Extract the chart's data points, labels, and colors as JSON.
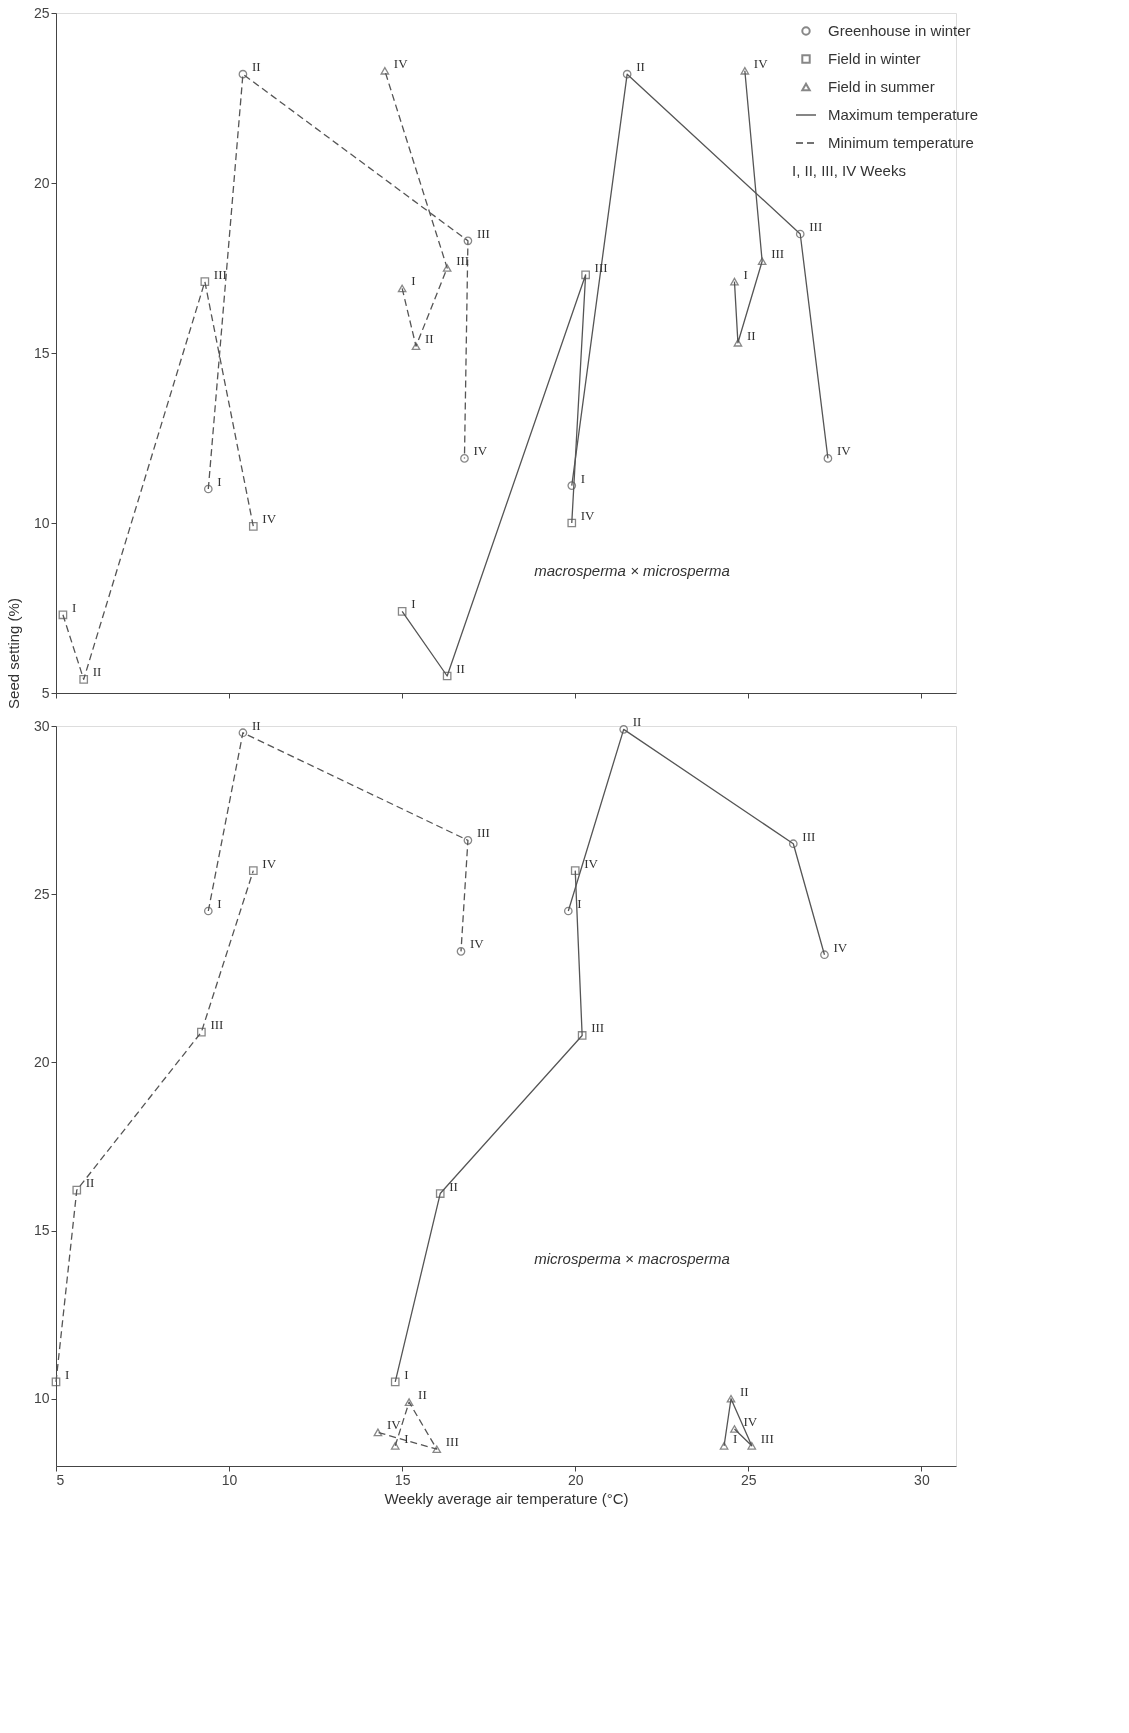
{
  "chart_data": [
    {
      "type": "line",
      "ylabel": "Seed setting (%)",
      "xlim": [
        5,
        31
      ],
      "xticks": [
        5,
        10,
        15,
        20,
        25,
        30
      ],
      "ylim": [
        5,
        25
      ],
      "yticks": [
        5,
        10,
        15,
        20,
        25
      ],
      "tick_labels": "y",
      "grid": false,
      "legend": "top right",
      "annotations": [
        "macrosperma × microsperma",
        "Maximum temperature",
        "Minimum temperature",
        "I, II, III, IV  Weeks"
      ],
      "series": [
        {
          "name": "Greenhouse in winter",
          "color": "#555555",
          "marker": "circle",
          "line_style": "solid",
          "x": [
            19.9,
            21.5,
            26.5,
            27.3
          ],
          "values": [
            11.1,
            23.2,
            18.5,
            11.9
          ],
          "value_labels": [
            "I",
            "II",
            "III",
            "IV"
          ]
        },
        {
          "color": "#555555",
          "marker": "circle",
          "line_style": "dashed",
          "x": [
            9.4,
            10.4,
            16.9,
            16.8
          ],
          "values": [
            11.0,
            23.2,
            18.3,
            11.9
          ],
          "value_labels": [
            "I",
            "II",
            "III",
            "IV"
          ]
        },
        {
          "name": "Field in winter",
          "color": "#555555",
          "marker": "square",
          "line_style": "solid",
          "x": [
            15.0,
            16.3,
            20.3,
            19.9
          ],
          "values": [
            7.4,
            5.5,
            17.3,
            10.0
          ],
          "value_labels": [
            "I",
            "II",
            "III",
            "IV"
          ]
        },
        {
          "color": "#555555",
          "marker": "square",
          "line_style": "dashed",
          "x": [
            5.2,
            5.8,
            9.3,
            10.7
          ],
          "values": [
            7.3,
            5.4,
            17.1,
            9.9
          ],
          "value_labels": [
            "I",
            "II",
            "III",
            "IV"
          ]
        },
        {
          "name": "Field in summer",
          "color": "#555555",
          "marker": "triangle",
          "line_style": "solid",
          "x": [
            24.6,
            24.7,
            25.4,
            24.9
          ],
          "values": [
            17.1,
            15.3,
            17.7,
            23.3
          ],
          "value_labels": [
            "I",
            "II",
            "III",
            "IV"
          ]
        },
        {
          "color": "#555555",
          "marker": "triangle",
          "line_style": "dashed",
          "x": [
            15.0,
            15.4,
            16.3,
            14.5
          ],
          "values": [
            16.9,
            15.2,
            17.5,
            23.3
          ],
          "value_labels": [
            "I",
            "II",
            "III",
            "IV"
          ]
        }
      ]
    },
    {
      "type": "line",
      "xlabel": "Weekly average air temperature (°C)",
      "xlim": [
        5,
        31
      ],
      "xticks": [
        5,
        10,
        15,
        20,
        25,
        30
      ],
      "ylim": [
        8,
        30
      ],
      "yticks": [
        10,
        15,
        20,
        25,
        30
      ],
      "grid": false,
      "annotations": [
        "microsperma × macrosperma"
      ],
      "series": [
        {
          "color": "#555555",
          "marker": "circle",
          "line_style": "solid",
          "x": [
            19.8,
            21.4,
            26.3,
            27.2
          ],
          "values": [
            24.5,
            29.9,
            26.5,
            23.2
          ],
          "value_labels": [
            "I",
            "II",
            "III",
            "IV"
          ]
        },
        {
          "color": "#555555",
          "marker": "circle",
          "line_style": "dashed",
          "x": [
            9.4,
            10.4,
            16.9,
            16.7
          ],
          "values": [
            24.5,
            29.8,
            26.6,
            23.3
          ],
          "value_labels": [
            "I",
            "II",
            "III",
            "IV"
          ]
        },
        {
          "color": "#555555",
          "marker": "square",
          "line_style": "solid",
          "x": [
            14.8,
            16.1,
            20.2,
            20.0
          ],
          "values": [
            10.5,
            16.1,
            20.8,
            25.7
          ],
          "value_labels": [
            "I",
            "II",
            "III",
            "IV"
          ]
        },
        {
          "color": "#555555",
          "marker": "square",
          "line_style": "dashed",
          "x": [
            5.0,
            5.6,
            9.2,
            10.7
          ],
          "values": [
            10.5,
            16.2,
            20.9,
            25.7
          ],
          "value_labels": [
            "I",
            "II",
            "III",
            "IV"
          ]
        },
        {
          "color": "#555555",
          "marker": "triangle",
          "line_style": "solid",
          "x": [
            24.3,
            24.5,
            25.1,
            24.6
          ],
          "values": [
            8.6,
            10.0,
            8.6,
            9.1
          ],
          "value_labels": [
            "I",
            "II",
            "III",
            "IV"
          ]
        },
        {
          "color": "#555555",
          "marker": "triangle",
          "line_style": "dashed",
          "x": [
            14.8,
            15.2,
            16.0,
            14.3
          ],
          "values": [
            8.6,
            9.9,
            8.5,
            9.0
          ],
          "value_labels": [
            "I",
            "II",
            "III",
            "IV"
          ]
        }
      ]
    }
  ]
}
